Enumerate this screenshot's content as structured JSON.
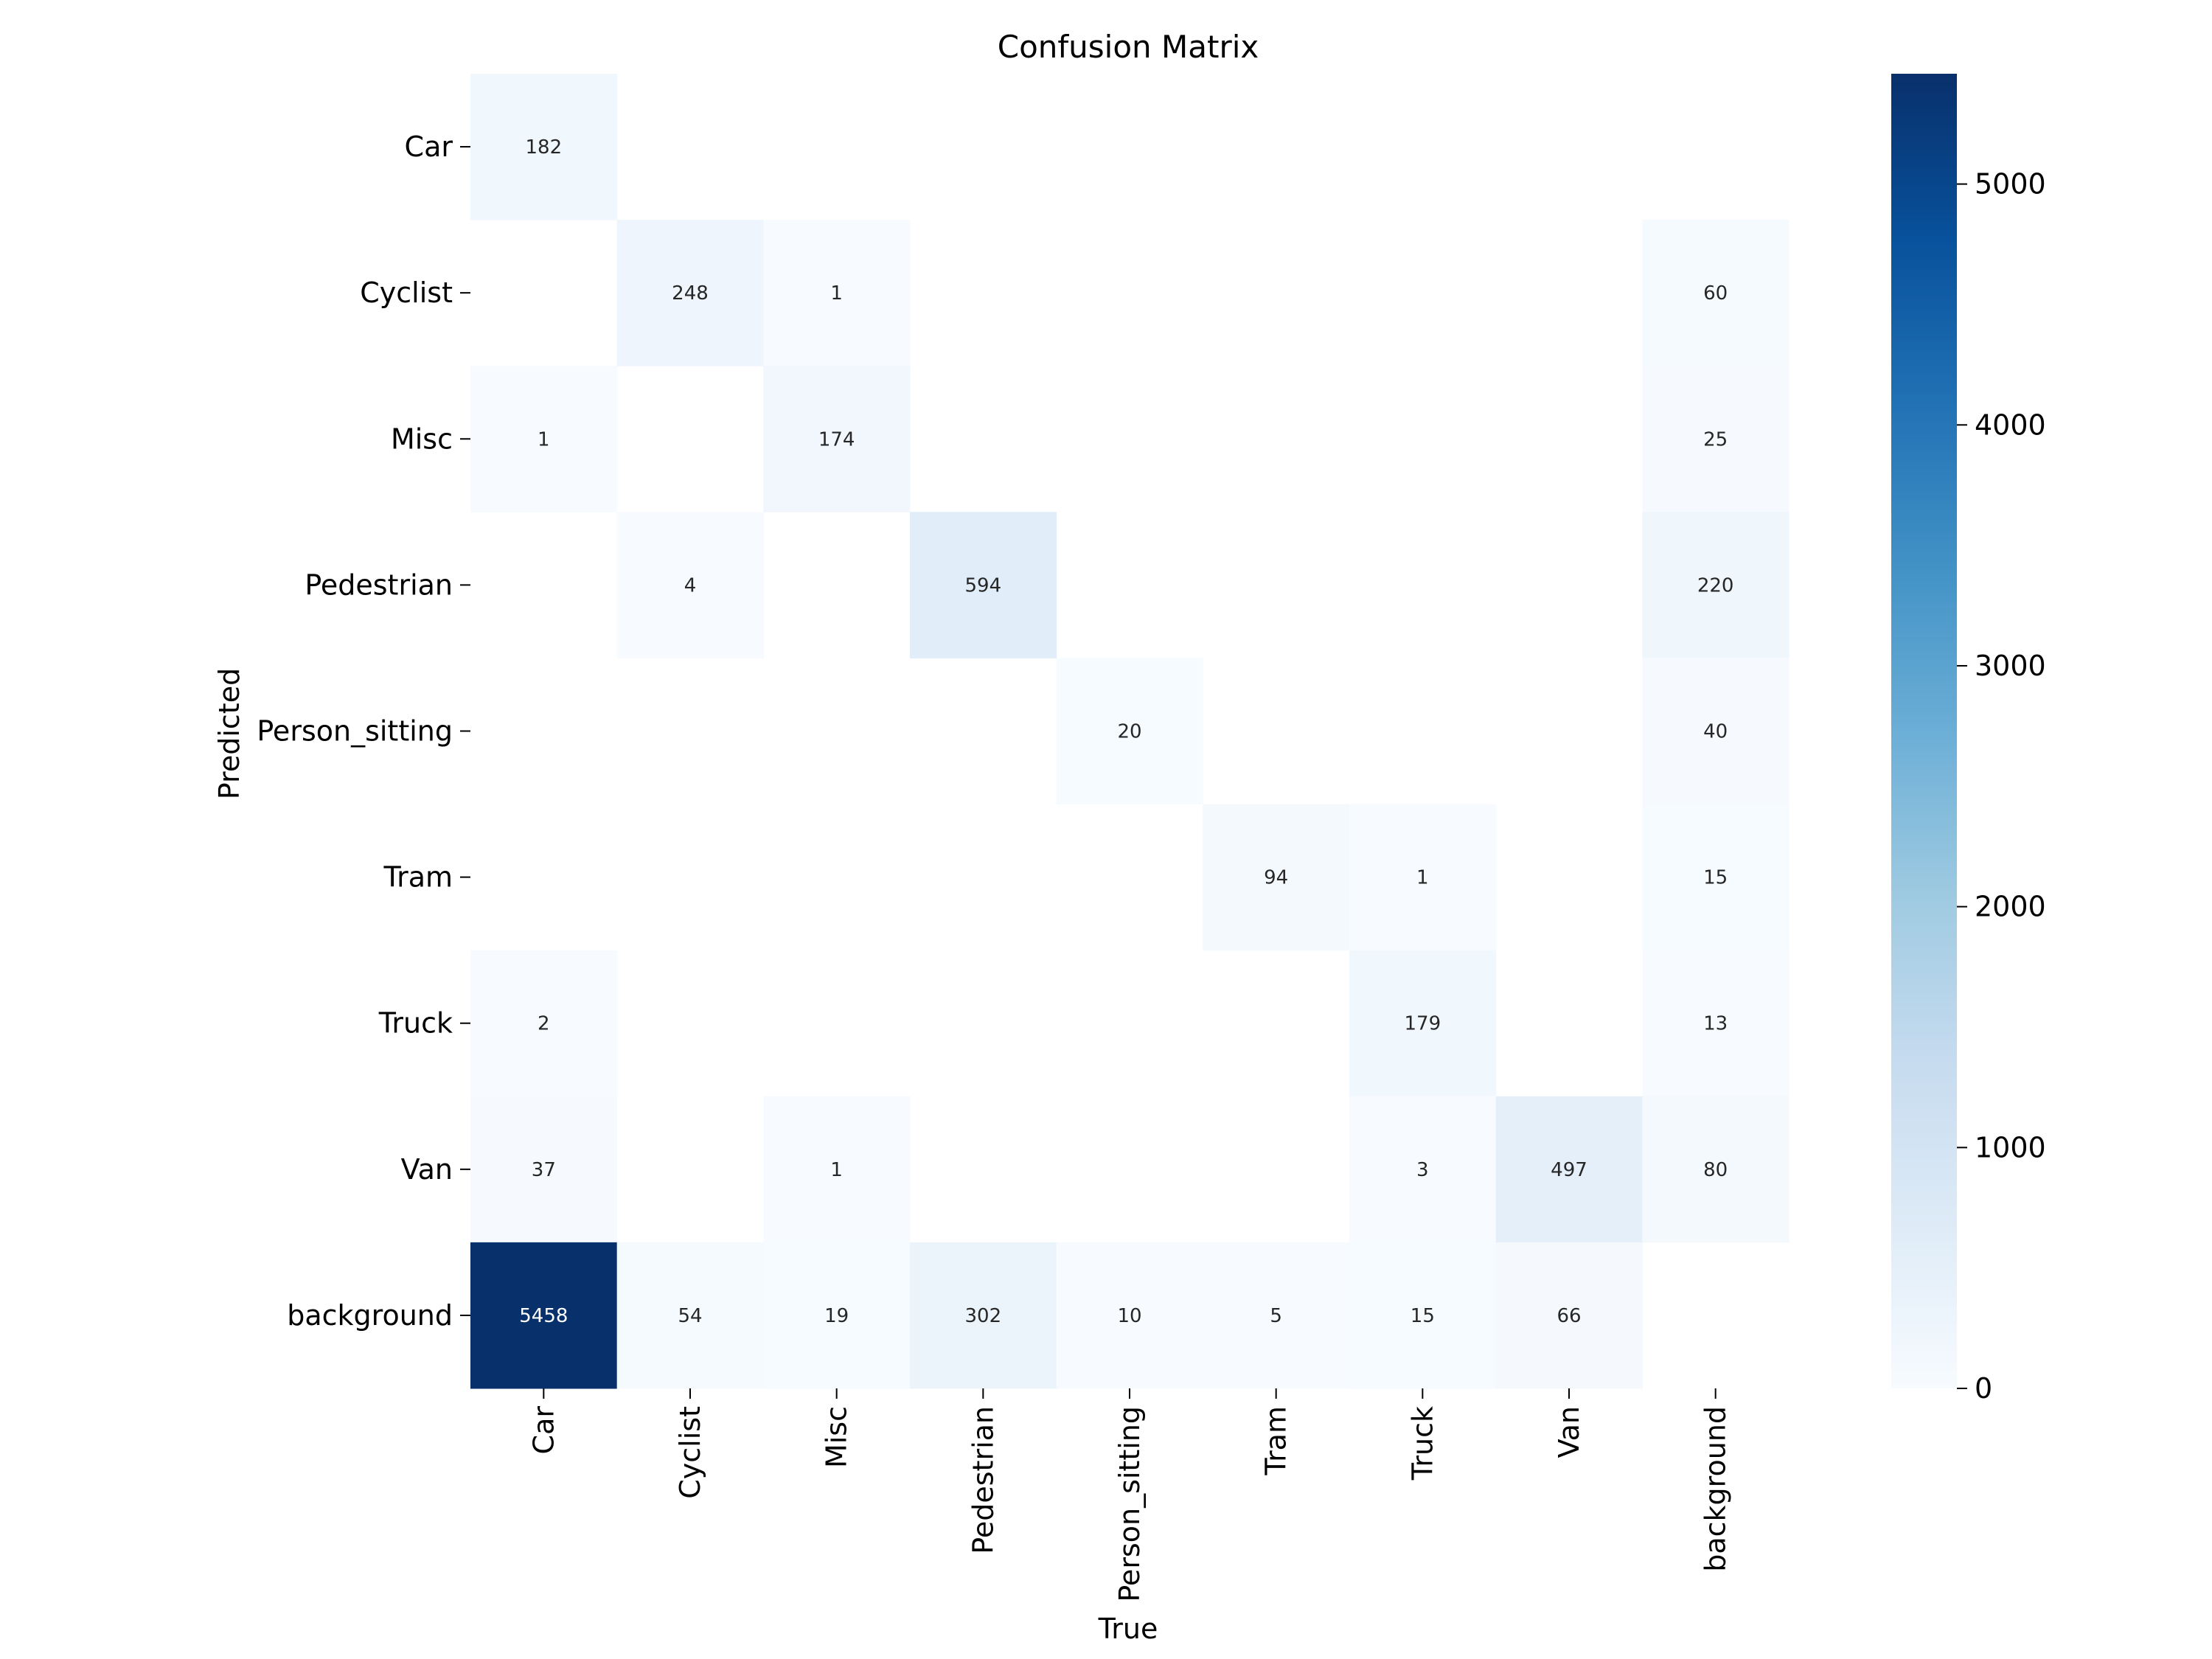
{
  "chart_data": {
    "type": "heatmap",
    "title": "Confusion Matrix",
    "xlabel": "True",
    "ylabel": "Predicted",
    "x_categories": [
      "Car",
      "Cyclist",
      "Misc",
      "Pedestrian",
      "Person_sitting",
      "Tram",
      "Truck",
      "Van",
      "background"
    ],
    "y_categories": [
      "Car",
      "Cyclist",
      "Misc",
      "Pedestrian",
      "Person_sitting",
      "Tram",
      "Truck",
      "Van",
      "background"
    ],
    "values": [
      [
        182,
        null,
        null,
        null,
        null,
        null,
        null,
        null,
        null
      ],
      [
        null,
        248,
        1,
        null,
        null,
        null,
        null,
        null,
        60
      ],
      [
        1,
        null,
        174,
        null,
        null,
        null,
        null,
        null,
        25
      ],
      [
        null,
        4,
        null,
        594,
        null,
        null,
        null,
        null,
        220
      ],
      [
        null,
        null,
        null,
        null,
        20,
        null,
        null,
        null,
        40
      ],
      [
        null,
        null,
        null,
        null,
        null,
        94,
        1,
        null,
        15
      ],
      [
        2,
        null,
        null,
        null,
        null,
        null,
        179,
        null,
        13
      ],
      [
        37,
        null,
        1,
        null,
        null,
        null,
        3,
        497,
        80
      ],
      [
        5458,
        54,
        19,
        302,
        10,
        5,
        15,
        66,
        null
      ]
    ],
    "colorbar": {
      "min": 0,
      "max": 5458,
      "ticks": [
        0,
        1000,
        2000,
        3000,
        4000,
        5000
      ],
      "colormap": "Blues"
    },
    "colors": {
      "low": "#f7fbff",
      "high": "#08306b",
      "text_dark": "#262626",
      "text_light": "#ffffff"
    }
  }
}
